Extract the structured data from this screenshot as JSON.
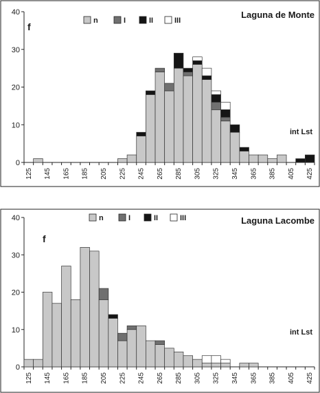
{
  "chart_data": [
    {
      "type": "bar",
      "stacked": true,
      "title": "Laguna de Monte",
      "panel_label": "f",
      "annotation": "int Lst",
      "ylim": [
        0,
        40
      ],
      "yticks": [
        0,
        10,
        20,
        30,
        40
      ],
      "grid": false,
      "legend": "top",
      "categories": [
        125,
        135,
        145,
        155,
        165,
        175,
        185,
        195,
        205,
        215,
        225,
        235,
        245,
        255,
        265,
        275,
        285,
        295,
        305,
        315,
        325,
        335,
        345,
        355,
        365,
        375,
        385,
        395,
        405,
        415,
        425
      ],
      "x_tick_labels": [
        "125",
        "145",
        "165",
        "185",
        "205",
        "225",
        "245",
        "265",
        "285",
        "305",
        "325",
        "345",
        "365",
        "385",
        "405",
        "425"
      ],
      "series": [
        {
          "name": "n",
          "color": "#c8c8c8",
          "values": [
            0,
            1,
            0,
            0,
            0,
            0,
            0,
            0,
            0,
            0,
            1,
            2,
            7,
            18,
            24,
            19,
            25,
            23,
            26,
            22,
            14,
            11,
            8,
            3,
            2,
            2,
            1,
            2,
            0,
            0,
            0
          ]
        },
        {
          "name": "I",
          "color": "#707070",
          "values": [
            0,
            0,
            0,
            0,
            0,
            0,
            0,
            0,
            0,
            0,
            0,
            0,
            0,
            0,
            1,
            2,
            0,
            1,
            0,
            0,
            2,
            1,
            0,
            0,
            0,
            0,
            0,
            0,
            0,
            0,
            0
          ]
        },
        {
          "name": "II",
          "color": "#151515",
          "values": [
            0,
            0,
            0,
            0,
            0,
            0,
            0,
            0,
            0,
            0,
            0,
            0,
            1,
            1,
            0,
            0,
            4,
            1,
            1,
            1,
            2,
            2,
            2,
            1,
            0,
            0,
            0,
            0,
            0,
            1,
            2
          ]
        },
        {
          "name": "III",
          "color": "#ffffff",
          "values": [
            0,
            0,
            0,
            0,
            0,
            0,
            0,
            0,
            0,
            0,
            0,
            0,
            0,
            0,
            0,
            0,
            0,
            0,
            1,
            2,
            1,
            2,
            0,
            0,
            0,
            0,
            0,
            0,
            0,
            0,
            0
          ]
        }
      ]
    },
    {
      "type": "bar",
      "stacked": true,
      "title": "Laguna Lacombe",
      "panel_label": "f",
      "annotation": "int Lst",
      "ylim": [
        0,
        40
      ],
      "yticks": [
        0,
        10,
        20,
        30,
        40
      ],
      "grid": false,
      "legend": "top",
      "categories": [
        125,
        135,
        145,
        155,
        165,
        175,
        185,
        195,
        205,
        215,
        225,
        235,
        245,
        255,
        265,
        275,
        285,
        295,
        305,
        315,
        325,
        335,
        345,
        355,
        365,
        375,
        385,
        395,
        405,
        415,
        425
      ],
      "x_tick_labels": [
        "125",
        "145",
        "165",
        "185",
        "205",
        "225",
        "245",
        "265",
        "285",
        "305",
        "325",
        "345",
        "365",
        "385",
        "405",
        "425"
      ],
      "series": [
        {
          "name": "n",
          "color": "#c8c8c8",
          "values": [
            2,
            2,
            20,
            17,
            27,
            18,
            32,
            31,
            18,
            13,
            7,
            10,
            11,
            7,
            6,
            5,
            4,
            3,
            2,
            1,
            1,
            1,
            0,
            1,
            1,
            0,
            0,
            0,
            0,
            0,
            0
          ]
        },
        {
          "name": "I",
          "color": "#707070",
          "values": [
            0,
            0,
            0,
            0,
            0,
            0,
            0,
            0,
            3,
            0,
            2,
            1,
            0,
            0,
            1,
            0,
            0,
            0,
            0,
            0,
            0,
            0,
            0,
            0,
            0,
            0,
            0,
            0,
            0,
            0,
            0
          ]
        },
        {
          "name": "II",
          "color": "#151515",
          "values": [
            0,
            0,
            0,
            0,
            0,
            0,
            0,
            0,
            0,
            1,
            0,
            0,
            0,
            0,
            0,
            0,
            0,
            0,
            0,
            0,
            0,
            0,
            0,
            0,
            0,
            0,
            0,
            0,
            0,
            0,
            0
          ]
        },
        {
          "name": "III",
          "color": "#ffffff",
          "values": [
            0,
            0,
            0,
            0,
            0,
            0,
            0,
            0,
            0,
            0,
            0,
            0,
            0,
            0,
            0,
            0,
            0,
            0,
            0,
            2,
            2,
            1,
            0,
            0,
            0,
            0,
            0,
            0,
            0,
            0,
            0
          ]
        }
      ]
    }
  ]
}
